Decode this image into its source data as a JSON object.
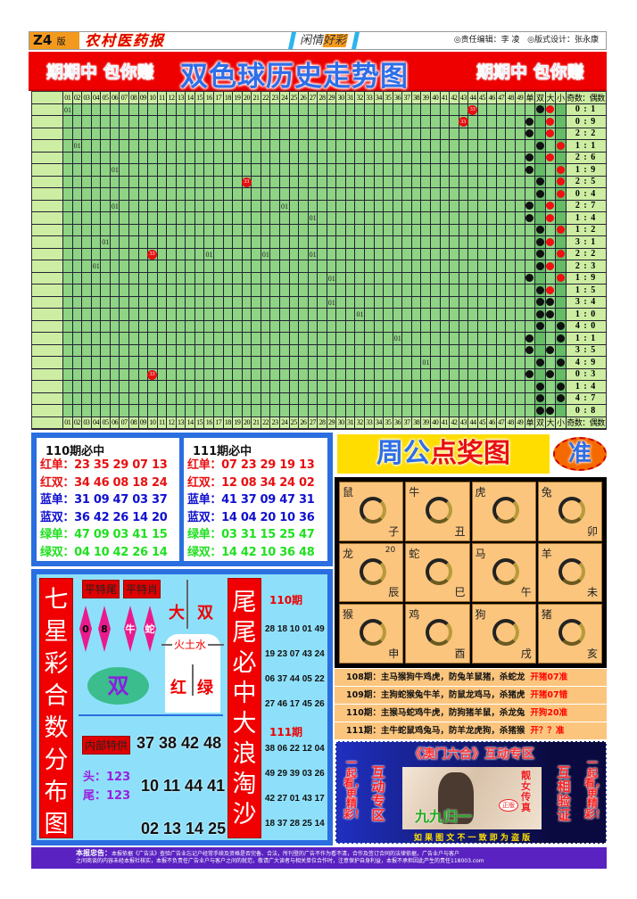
{
  "header": {
    "edition": "Z4",
    "edition_suffix": "版",
    "paper_name": "农村医药报",
    "column_a": "闲情",
    "column_b": "好彩",
    "editor": "◎责任编辑：李 凌",
    "designer": "◎版式设计：张永康"
  },
  "banner": {
    "slogan_left": "期期中 包你赚",
    "title": "双色球历史走势图",
    "slogan_right": "期期中 包你赚"
  },
  "trend": {
    "columns": [
      "01",
      "02",
      "03",
      "04",
      "05",
      "06",
      "07",
      "08",
      "09",
      "10",
      "11",
      "12",
      "13",
      "14",
      "15",
      "16",
      "17",
      "18",
      "19",
      "20",
      "21",
      "22",
      "23",
      "24",
      "25",
      "26",
      "27",
      "28",
      "29",
      "30",
      "31",
      "32",
      "33",
      "34",
      "35",
      "36",
      "37",
      "38",
      "39",
      "40",
      "41",
      "42",
      "43",
      "44",
      "45",
      "46",
      "47",
      "48",
      "49"
    ],
    "side_headers": [
      "单",
      "双",
      "大",
      "小"
    ],
    "ratio_header": "奇数：偶数",
    "colors": {
      "cell": "#8fd484",
      "label": "#cdeea2",
      "ball": "#e41010"
    },
    "rows": [
      {
        "marks": [
          {
            "col": 1,
            "text": "01",
            "style": "plain"
          },
          {
            "col": 44,
            "text": "33",
            "style": "red-ball"
          }
        ],
        "parity": "双",
        "size": "大",
        "size_dot": "red",
        "ratio": "0 : 1"
      },
      {
        "marks": [
          {
            "col": 43,
            "text": "33",
            "style": "red-ball"
          }
        ],
        "parity": "单",
        "size": "大",
        "size_dot": "red",
        "ratio": "0 : 9"
      },
      {
        "marks": [],
        "parity": "单",
        "size": "大",
        "size_dot": "red",
        "ratio": "2 : 2"
      },
      {
        "marks": [
          {
            "col": 2,
            "text": "01",
            "style": "plain"
          }
        ],
        "parity": "双",
        "size": "小",
        "size_dot": "red",
        "ratio": "1 : 1"
      },
      {
        "marks": [],
        "parity": "单",
        "size": "大",
        "size_dot": "red",
        "ratio": "2 : 6"
      },
      {
        "marks": [
          {
            "col": 6,
            "text": "01",
            "style": "plain"
          }
        ],
        "parity": "单",
        "size": "小",
        "size_dot": "red",
        "ratio": "1 : 9"
      },
      {
        "marks": [
          {
            "col": 20,
            "text": "33",
            "style": "red-ball"
          }
        ],
        "parity": "双",
        "size": "小",
        "size_dot": "red",
        "ratio": "2 : 5"
      },
      {
        "marks": [],
        "parity": "双",
        "size": "小",
        "size_dot": "red",
        "ratio": "0 : 4"
      },
      {
        "marks": [
          {
            "col": 6,
            "text": "01",
            "style": "plain"
          },
          {
            "col": 24,
            "text": "01",
            "style": "plain"
          }
        ],
        "parity": "单",
        "size": "大",
        "size_dot": "red",
        "ratio": "2 : 7"
      },
      {
        "marks": [
          {
            "col": 27,
            "text": "01",
            "style": "plain"
          }
        ],
        "parity": "单",
        "size": "大",
        "size_dot": "red",
        "ratio": "1 : 4"
      },
      {
        "marks": [],
        "parity": "双",
        "size": "小",
        "size_dot": "red",
        "ratio": "1 : 2"
      },
      {
        "marks": [
          {
            "col": 5,
            "text": "01",
            "style": "plain"
          }
        ],
        "parity": "双",
        "size": "大",
        "size_dot": "red",
        "ratio": "3 : 1"
      },
      {
        "marks": [
          {
            "col": 10,
            "text": "33",
            "style": "red-ball"
          },
          {
            "col": 16,
            "text": "01",
            "style": "plain"
          },
          {
            "col": 22,
            "text": "01",
            "style": "plain"
          },
          {
            "col": 27,
            "text": "01",
            "style": "plain"
          }
        ],
        "parity": "双",
        "size": "小",
        "size_dot": "red",
        "ratio": "2 : 2"
      },
      {
        "marks": [
          {
            "col": 4,
            "text": "01",
            "style": "plain"
          }
        ],
        "parity": "双",
        "size": "大",
        "size_dot": "red",
        "ratio": "2 : 3"
      },
      {
        "marks": [
          {
            "col": 29,
            "text": "01",
            "style": "plain"
          }
        ],
        "parity": "单",
        "size": "小",
        "size_dot": "red",
        "ratio": "1 : 9"
      },
      {
        "marks": [],
        "parity": "双",
        "size": "大",
        "size_dot": "red",
        "ratio": "1 : 5"
      },
      {
        "marks": [
          {
            "col": 29,
            "text": "01",
            "style": "plain"
          }
        ],
        "parity": "双",
        "size": "大",
        "size_dot": "black",
        "ratio": "3 : 4"
      },
      {
        "marks": [
          {
            "col": 32,
            "text": "01",
            "style": "plain"
          }
        ],
        "parity": "双",
        "size": "大",
        "size_dot": "black",
        "ratio": "1 : 0"
      },
      {
        "marks": [],
        "parity": "双",
        "size": "小",
        "size_dot": "black",
        "ratio": "4 : 0"
      },
      {
        "marks": [
          {
            "col": 36,
            "text": "01",
            "style": "plain"
          }
        ],
        "parity": "单",
        "size": "小",
        "size_dot": "black",
        "ratio": "1 : 1"
      },
      {
        "marks": [],
        "parity": "单",
        "size": "大",
        "size_dot": "black",
        "ratio": "3 : 5"
      },
      {
        "marks": [
          {
            "col": 39,
            "text": "01",
            "style": "plain"
          }
        ],
        "parity": "双",
        "size": "小",
        "size_dot": "black",
        "ratio": "4 : 9"
      },
      {
        "marks": [
          {
            "col": 10,
            "text": "33",
            "style": "red-ball"
          }
        ],
        "parity": "单",
        "size": "大",
        "size_dot": "black",
        "ratio": "0 : 3"
      },
      {
        "marks": [],
        "parity": "双",
        "size": "小",
        "size_dot": "black",
        "ratio": "1 : 4"
      },
      {
        "marks": [],
        "parity": "双",
        "size": "小",
        "size_dot": "black",
        "ratio": "4 : 7"
      },
      {
        "marks": [],
        "parity": "双",
        "size": "大",
        "size_dot": "black",
        "ratio": "0 : 8"
      }
    ]
  },
  "lotto": [
    {
      "title": "110期必中",
      "rows": [
        {
          "label": "红单：",
          "nums": "23 35 29 07 13",
          "color": "#e81010"
        },
        {
          "label": "红双：",
          "nums": "34 46 08 18 24",
          "color": "#e81010"
        },
        {
          "label": "蓝单：",
          "nums": "31 09 47 03 37",
          "color": "#1010d0"
        },
        {
          "label": "蓝双：",
          "nums": "36 42 26 14 20",
          "color": "#1010d0"
        },
        {
          "label": "绿单：",
          "nums": "47 09 03 41 15",
          "color": "#20e020"
        },
        {
          "label": "绿双：",
          "nums": "04 10 42 26 14",
          "color": "#20e020"
        }
      ]
    },
    {
      "title": "111期必中",
      "rows": [
        {
          "label": "红单：",
          "nums": "07 23 29 19 13",
          "color": "#e81010"
        },
        {
          "label": "红双：",
          "nums": "12 08 34 24 02",
          "color": "#e81010"
        },
        {
          "label": "蓝单：",
          "nums": "41 37 09 47 31",
          "color": "#1010d0"
        },
        {
          "label": "蓝双：",
          "nums": "14 04 20 10 36",
          "color": "#1010d0"
        },
        {
          "label": "绿单：",
          "nums": "03 31 15 25 47",
          "color": "#20e020"
        },
        {
          "label": "绿双：",
          "nums": "14 42 10 36 48",
          "color": "#20e020"
        }
      ]
    }
  ],
  "seven": {
    "left_bar": "七星彩合数分布图",
    "tail_label": "平特尾",
    "zodiac_label": "平特肖",
    "diamonds": [
      "0",
      "8",
      "牛",
      "蛇"
    ],
    "big": "大",
    "even": "双",
    "elements": "火土水",
    "red": "红",
    "green": "绿",
    "oval": "双",
    "internal_label": "内部特供",
    "internal_rows": [
      "37 38 42 48",
      "10 11 44 41",
      "02 13 14 25"
    ],
    "head": "头：123",
    "tail": "尾：123",
    "right_bar": "尾尾必中大浪淘沙",
    "periods": [
      {
        "label": "110期",
        "rows": [
          "28 18 10 01 49",
          "19 23 07 43 24",
          "06 37 44 05 22",
          "27 46 17 45 26"
        ]
      },
      {
        "label": "111期",
        "rows": [
          "38 06 22 12 04",
          "49 29 39 03 26",
          "42 27 01 43 17",
          "18 37 28 25 14"
        ]
      }
    ]
  },
  "zodiac": {
    "title_a": "周公",
    "title_b": "点奖图",
    "badge": "准",
    "cells": [
      {
        "name": "鼠",
        "branch": "子"
      },
      {
        "name": "牛",
        "branch": "丑"
      },
      {
        "name": "虎",
        "branch": ""
      },
      {
        "name": "兔",
        "branch": "卯"
      },
      {
        "name": "龙",
        "branch": "辰",
        "number": "20"
      },
      {
        "name": "蛇",
        "branch": "巳"
      },
      {
        "name": "马",
        "branch": "午"
      },
      {
        "name": "羊",
        "branch": "未"
      },
      {
        "name": "猴",
        "branch": "申"
      },
      {
        "name": "鸡",
        "branch": "酉"
      },
      {
        "name": "狗",
        "branch": "戌"
      },
      {
        "name": "猪",
        "branch": "亥"
      }
    ],
    "predictions": [
      {
        "text": "108期：主马猴狗牛鸡虎，防兔羊鼠猪，杀蛇龙",
        "result": "开猪07准"
      },
      {
        "text": "109期：主狗蛇猴兔牛羊，防鼠龙鸡马，杀猪虎",
        "result": "开猪07错"
      },
      {
        "text": "110期：主猴马蛇鸡牛虎，防狗猪羊鼠，杀龙兔",
        "result": "开狗20准"
      },
      {
        "text": "111期：主牛蛇鼠鸡兔马，防羊龙虎狗，杀猪猴",
        "result": "开？？准"
      }
    ]
  },
  "ad": {
    "title": "《澳门六合》互动专区",
    "left_outer": "一起看，更精彩！",
    "left_inner": "互动专区",
    "right_inner": "互相验证",
    "right_outer": "一起看，更精彩！",
    "photo_caption": "靓女传真",
    "photo_brand": "九九归一",
    "photo_badge": "正版",
    "bottom": "如 果 图 文 不 一 致 即 为 盗 版"
  },
  "footer": {
    "label": "本报忠告：",
    "line1": "本报依据《广告法》查验广告业忘记户经常手续及资格是否完备、合法，所刊登的广告不作为看不清，合作及签订合同的法律依据，广告业户与客户",
    "line2": "之间商谈的内容未经本报社核实，本报不负责任广告业户与客户之间的就范，敬请广大读者与相关单位合作时，注意保护自身利益，本报不承担因此产生的责任118003.com"
  }
}
